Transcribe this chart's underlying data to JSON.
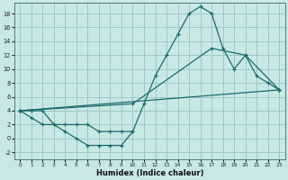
{
  "xlabel": "Humidex (Indice chaleur)",
  "bg_color": "#c8e8e4",
  "grid_color": "#a0c8c4",
  "line_color": "#1a6b6b",
  "xlim": [
    -0.5,
    23.5
  ],
  "ylim": [
    -3,
    19.5
  ],
  "xticks": [
    0,
    1,
    2,
    3,
    4,
    5,
    6,
    7,
    8,
    9,
    10,
    11,
    12,
    13,
    14,
    15,
    16,
    17,
    18,
    19,
    20,
    21,
    22,
    23
  ],
  "yticks": [
    -2,
    0,
    2,
    4,
    6,
    8,
    10,
    12,
    14,
    16,
    18
  ],
  "curve_main_x": [
    0,
    1,
    2,
    3,
    4,
    5,
    6,
    7,
    8,
    9,
    10,
    11,
    12,
    13,
    14,
    15,
    16,
    17,
    18,
    19,
    20,
    21,
    22,
    23
  ],
  "curve_main_y": [
    4,
    4,
    4,
    2,
    2,
    2,
    2,
    1,
    1,
    1,
    1,
    5,
    9,
    12,
    15,
    18,
    19,
    18,
    13,
    10,
    12,
    9,
    8,
    7
  ],
  "curve_line1_x": [
    0,
    10,
    17,
    20,
    23
  ],
  "curve_line1_y": [
    4,
    5,
    13,
    12,
    7
  ],
  "curve_line2_x": [
    0,
    23
  ],
  "curve_line2_y": [
    4,
    7
  ],
  "curve_dip_x": [
    0,
    1,
    2,
    3,
    4,
    5,
    6,
    7,
    8,
    9,
    10
  ],
  "curve_dip_y": [
    4,
    3,
    2,
    2,
    1,
    0,
    -1,
    -1,
    -1,
    -1,
    1
  ]
}
